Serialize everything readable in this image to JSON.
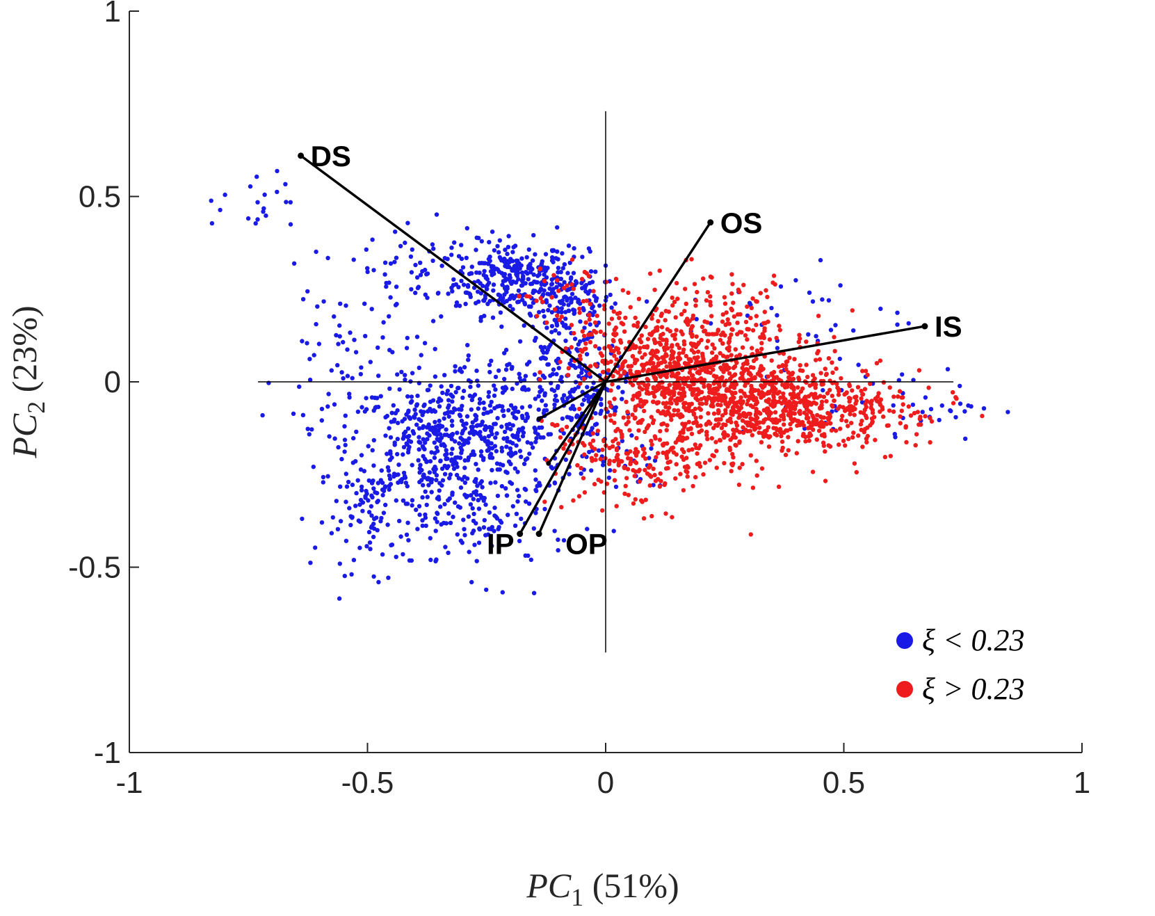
{
  "chart_data": {
    "type": "scatter",
    "title": "",
    "xlabel": "PC1 (51%)",
    "xlabel_base": "PC",
    "xlabel_sub": "1",
    "xlabel_rest": " (51%)",
    "ylabel": "PC2 (23%)",
    "ylabel_base": "PC",
    "ylabel_sub": "2",
    "ylabel_rest": " (23%)",
    "xlim": [
      -1,
      1
    ],
    "ylim": [
      -1,
      1
    ],
    "xticks": [
      -1,
      -0.5,
      0,
      0.5,
      1
    ],
    "xtick_labels": [
      "-1",
      "-0.5",
      "0",
      "0.5",
      "1"
    ],
    "yticks": [
      -1,
      -0.5,
      0,
      0.5,
      1
    ],
    "ytick_labels": [
      "-1",
      "-0.5",
      "0",
      "0.5",
      "1"
    ],
    "crosshair": {
      "x_range": [
        -0.73,
        0.73
      ],
      "y_range": [
        -0.73,
        0.73
      ]
    },
    "legend_position": "bottom-right",
    "series": [
      {
        "name": "ξ < 0.23",
        "color": "#1a1ae6",
        "clusters": [
          {
            "cx": -0.2,
            "cy": 0.28,
            "sx": 0.06,
            "sy": 0.05,
            "n": 260
          },
          {
            "cx": -0.08,
            "cy": 0.22,
            "sx": 0.05,
            "sy": 0.06,
            "n": 140
          },
          {
            "cx": -0.38,
            "cy": 0.28,
            "sx": 0.08,
            "sy": 0.07,
            "n": 70
          },
          {
            "cx": -0.36,
            "cy": -0.16,
            "sx": 0.09,
            "sy": 0.08,
            "n": 320
          },
          {
            "cx": -0.22,
            "cy": -0.12,
            "sx": 0.1,
            "sy": 0.1,
            "n": 300
          },
          {
            "cx": -0.47,
            "cy": -0.35,
            "sx": 0.07,
            "sy": 0.08,
            "n": 130
          },
          {
            "cx": -0.25,
            "cy": -0.37,
            "sx": 0.09,
            "sy": 0.08,
            "n": 110
          },
          {
            "cx": -0.55,
            "cy": 0.02,
            "sx": 0.07,
            "sy": 0.12,
            "n": 70
          },
          {
            "cx": -0.72,
            "cy": 0.5,
            "sx": 0.08,
            "sy": 0.05,
            "n": 22
          },
          {
            "cx": -0.04,
            "cy": -0.05,
            "sx": 0.04,
            "sy": 0.06,
            "n": 90
          },
          {
            "cx": -0.1,
            "cy": 0.05,
            "sx": 0.06,
            "sy": 0.08,
            "n": 100
          },
          {
            "cx": 0.62,
            "cy": -0.06,
            "sx": 0.1,
            "sy": 0.05,
            "n": 45
          },
          {
            "cx": 0.4,
            "cy": 0.18,
            "sx": 0.12,
            "sy": 0.07,
            "n": 35
          },
          {
            "cx": 0.05,
            "cy": -0.22,
            "sx": 0.05,
            "sy": 0.06,
            "n": 20
          }
        ]
      },
      {
        "name": "ξ > 0.23",
        "color": "#ee1c1c",
        "clusters": [
          {
            "cx": 0.14,
            "cy": 0.02,
            "sx": 0.07,
            "sy": 0.07,
            "n": 420
          },
          {
            "cx": 0.3,
            "cy": -0.04,
            "sx": 0.1,
            "sy": 0.08,
            "n": 450
          },
          {
            "cx": 0.4,
            "cy": -0.08,
            "sx": 0.1,
            "sy": 0.06,
            "n": 300
          },
          {
            "cx": 0.22,
            "cy": 0.15,
            "sx": 0.1,
            "sy": 0.07,
            "n": 180
          },
          {
            "cx": 0.1,
            "cy": -0.2,
            "sx": 0.08,
            "sy": 0.07,
            "n": 200
          },
          {
            "cx": 0.0,
            "cy": 0.1,
            "sx": 0.05,
            "sy": 0.08,
            "n": 110
          },
          {
            "cx": 0.56,
            "cy": -0.08,
            "sx": 0.09,
            "sy": 0.05,
            "n": 90
          },
          {
            "cx": -0.05,
            "cy": -0.2,
            "sx": 0.04,
            "sy": 0.07,
            "n": 40
          },
          {
            "cx": -0.1,
            "cy": 0.25,
            "sx": 0.05,
            "sy": 0.04,
            "n": 25
          }
        ]
      }
    ],
    "loading_vectors": [
      {
        "name": "DS",
        "x": -0.64,
        "y": 0.61
      },
      {
        "name": "OS",
        "x": 0.22,
        "y": 0.43
      },
      {
        "name": "IS",
        "x": 0.67,
        "y": 0.15
      },
      {
        "name": "IP",
        "x": -0.18,
        "y": -0.41
      },
      {
        "name": "OP",
        "x": -0.14,
        "y": -0.41
      }
    ],
    "minor_vectors": [
      {
        "x": -0.14,
        "y": -0.1
      },
      {
        "x": -0.12,
        "y": -0.22
      }
    ]
  }
}
